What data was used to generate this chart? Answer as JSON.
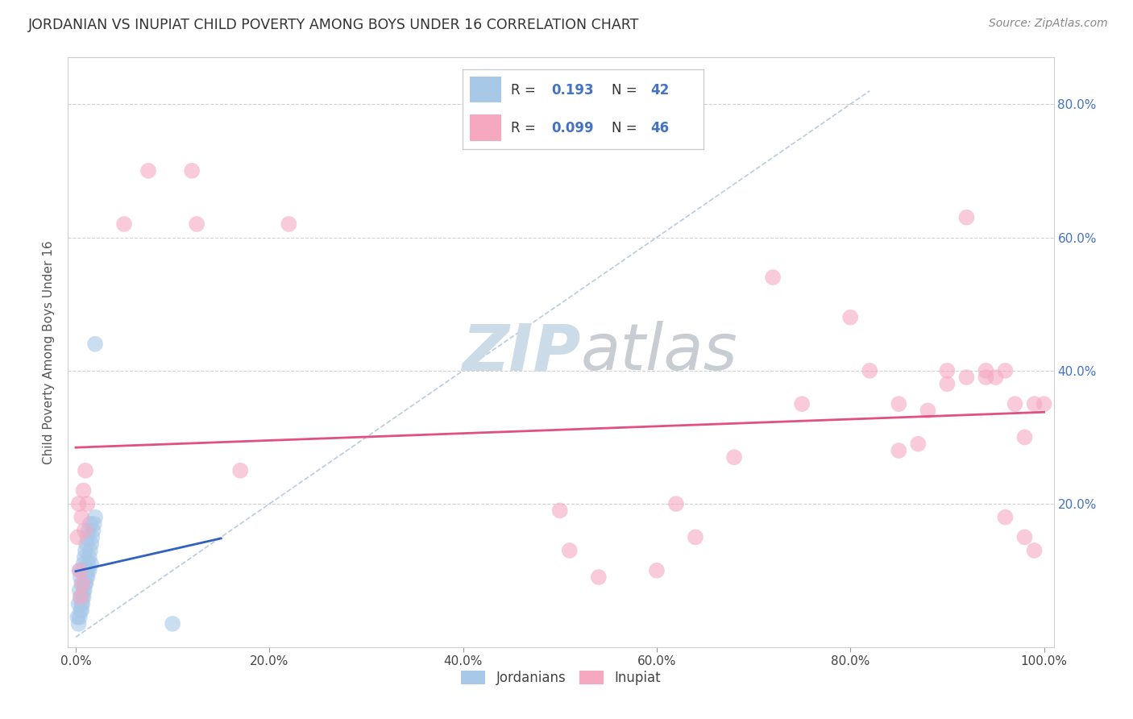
{
  "title": "JORDANIAN VS INUPIAT CHILD POVERTY AMONG BOYS UNDER 16 CORRELATION CHART",
  "source": "Source: ZipAtlas.com",
  "ylabel": "Child Poverty Among Boys Under 16",
  "legend_labels": [
    "Jordanians",
    "Inupiat"
  ],
  "R_jordanian": 0.193,
  "N_jordanian": 42,
  "R_inupiat": 0.099,
  "N_inupiat": 46,
  "jordanian_color": "#a8c8e8",
  "inupiat_color": "#f5a8c0",
  "jordanian_line_color": "#3060c0",
  "inupiat_line_color": "#e05080",
  "diagonal_color": "#b8ccdd",
  "watermark_zip_color": "#c8d8e8",
  "watermark_atlas_color": "#c0c8d0",
  "background_color": "#ffffff",
  "grid_color": "#cccccc",
  "right_tick_color": "#4472c4",
  "jordanian_x": [
    0.002,
    0.003,
    0.004,
    0.004,
    0.005,
    0.005,
    0.006,
    0.006,
    0.007,
    0.007,
    0.008,
    0.008,
    0.009,
    0.009,
    0.01,
    0.01,
    0.011,
    0.011,
    0.012,
    0.012,
    0.013,
    0.013,
    0.014,
    0.015,
    0.015,
    0.016,
    0.017,
    0.018,
    0.019,
    0.02,
    0.003,
    0.004,
    0.005,
    0.006,
    0.007,
    0.008,
    0.01,
    0.012,
    0.014,
    0.016,
    0.02,
    0.1
  ],
  "jordanian_y": [
    0.03,
    0.05,
    0.07,
    0.1,
    0.06,
    0.09,
    0.04,
    0.08,
    0.05,
    0.1,
    0.06,
    0.11,
    0.07,
    0.12,
    0.08,
    0.13,
    0.09,
    0.14,
    0.1,
    0.15,
    0.11,
    0.16,
    0.12,
    0.13,
    0.17,
    0.14,
    0.15,
    0.16,
    0.17,
    0.18,
    0.02,
    0.03,
    0.04,
    0.05,
    0.06,
    0.07,
    0.08,
    0.09,
    0.1,
    0.11,
    0.44,
    0.02
  ],
  "inupiat_x": [
    0.002,
    0.003,
    0.004,
    0.005,
    0.006,
    0.007,
    0.008,
    0.009,
    0.01,
    0.012,
    0.05,
    0.075,
    0.12,
    0.125,
    0.17,
    0.22,
    0.5,
    0.51,
    0.54,
    0.6,
    0.62,
    0.64,
    0.68,
    0.72,
    0.75,
    0.8,
    0.82,
    0.85,
    0.87,
    0.9,
    0.92,
    0.94,
    0.95,
    0.96,
    0.97,
    0.98,
    0.99,
    0.85,
    0.88,
    0.9,
    0.92,
    0.94,
    0.96,
    0.98,
    0.99,
    1.0
  ],
  "inupiat_y": [
    0.15,
    0.2,
    0.1,
    0.06,
    0.18,
    0.08,
    0.22,
    0.16,
    0.25,
    0.2,
    0.62,
    0.7,
    0.7,
    0.62,
    0.25,
    0.62,
    0.19,
    0.13,
    0.09,
    0.1,
    0.2,
    0.15,
    0.27,
    0.54,
    0.35,
    0.48,
    0.4,
    0.35,
    0.29,
    0.38,
    0.63,
    0.4,
    0.39,
    0.4,
    0.35,
    0.3,
    0.35,
    0.28,
    0.34,
    0.4,
    0.39,
    0.39,
    0.18,
    0.15,
    0.13,
    0.35
  ],
  "xlim": [
    0.0,
    1.0
  ],
  "ylim": [
    0.0,
    0.85
  ],
  "xtick_positions": [
    0.0,
    0.2,
    0.4,
    0.6,
    0.8,
    1.0
  ],
  "xtick_labels": [
    "0.0%",
    "20.0%",
    "40.0%",
    "60.0%",
    "80.0%",
    "100.0%"
  ],
  "ytick_positions": [
    0.2,
    0.4,
    0.6,
    0.8
  ],
  "ytick_labels": [
    "20.0%",
    "40.0%",
    "60.0%",
    "80.0%"
  ]
}
